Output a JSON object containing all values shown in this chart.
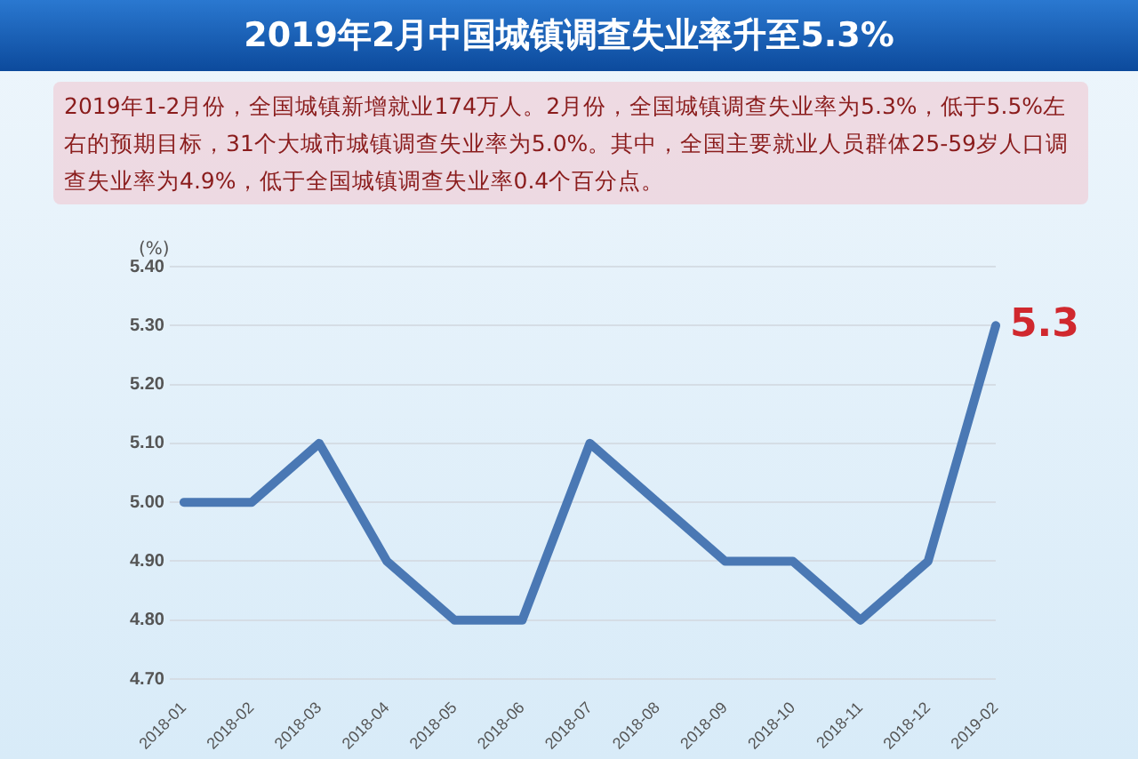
{
  "chart_data": {
    "type": "line",
    "title": "2019年2月中国城镇调查失业率升至5.3%",
    "subtitle": "2019年1-2月份，全国城镇新增就业174万人。2月份，全国城镇调查失业率为5.3%，低于5.5%左右的预期目标，31个大城市城镇调查失业率为5.0%。其中，全国主要就业人员群体25-59岁人口调查失业率为4.9%，低于全国城镇调查失业率0.4个百分点。",
    "ylabel": "(%)",
    "categories": [
      "2018-01",
      "2018-02",
      "2018-03",
      "2018-04",
      "2018-05",
      "2018-06",
      "2018-07",
      "2018-08",
      "2018-09",
      "2018-10",
      "2018-11",
      "2018-12",
      "2019-02"
    ],
    "series": [
      {
        "color": "#4a78b4",
        "values": [
          5.0,
          5.0,
          5.1,
          4.9,
          4.8,
          4.8,
          5.1,
          5.0,
          4.9,
          4.9,
          4.8,
          4.9,
          5.3
        ],
        "value_labels": [
          null,
          null,
          null,
          null,
          null,
          null,
          null,
          null,
          null,
          null,
          null,
          null,
          "5.3"
        ]
      }
    ],
    "ylim": [
      4.7,
      5.4
    ],
    "yticks": [
      {
        "value": 4.7,
        "label": "4.70"
      },
      {
        "value": 4.8,
        "label": "4.80"
      },
      {
        "value": 4.9,
        "label": "4.90"
      },
      {
        "value": 5.0,
        "label": "5.00"
      },
      {
        "value": 5.1,
        "label": "5.10"
      },
      {
        "value": 5.2,
        "label": "5.20"
      },
      {
        "value": 5.3,
        "label": "5.30"
      },
      {
        "value": 5.4,
        "label": "5.40"
      }
    ],
    "grid": "y",
    "legend": false,
    "marker": "none",
    "line_style": "solid"
  }
}
